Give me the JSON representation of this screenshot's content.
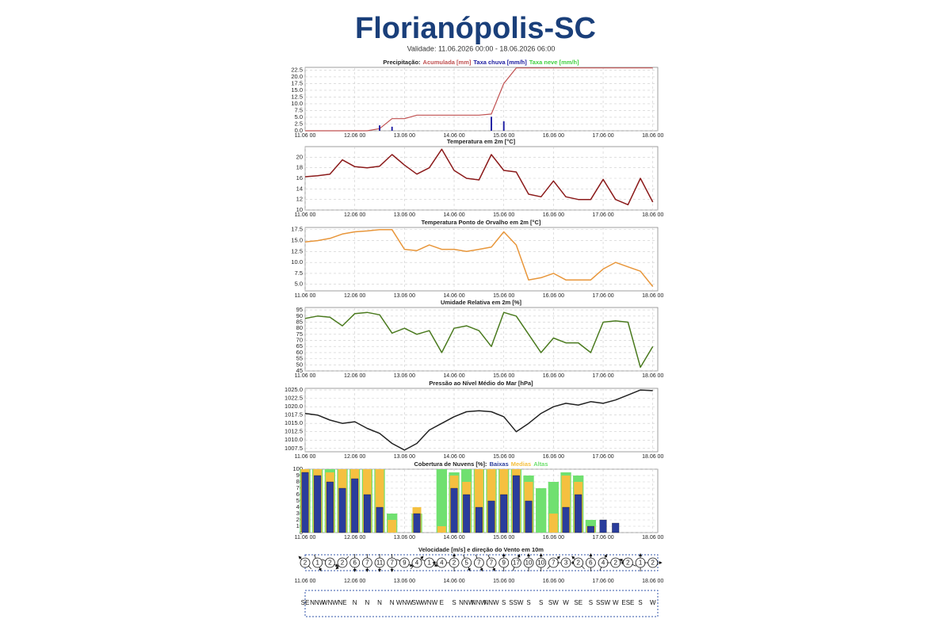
{
  "header": {
    "title": "Florianópolis-SC",
    "validity": "Validade: 11.06.2026 00:00 - 18.06.2026 06:00"
  },
  "chart_data": [
    {
      "type": "combo",
      "title": "Precipitação:",
      "categories": [
        "11.06 00",
        null,
        null,
        null,
        "12.06 00",
        null,
        null,
        null,
        "13.06 00",
        null,
        null,
        null,
        "14.06 00",
        null,
        null,
        null,
        "15.06 00",
        null,
        null,
        null,
        "16.06 00",
        null,
        null,
        null,
        "17.06 00",
        null,
        null,
        null,
        "18.06 00"
      ],
      "ylim": [
        0,
        23.5
      ],
      "yticks": [
        {
          "value": 0,
          "label": "0.0"
        },
        2.5,
        {
          "value": 5,
          "label": "5.0"
        },
        7.5,
        {
          "value": 10,
          "label": "10.0"
        },
        12.5,
        {
          "value": 15,
          "label": "15.0"
        },
        17.5,
        {
          "value": 20,
          "label": "20.0"
        },
        22.5
      ],
      "series": [
        {
          "name": "Acumulada [mm]",
          "kind": "line",
          "color": "#c05050",
          "values": [
            0,
            0,
            0,
            0,
            0,
            0,
            0.8,
            4.5,
            4.5,
            5.8,
            5.8,
            5.8,
            5.8,
            5.8,
            5.8,
            6.2,
            17.5,
            23.3,
            23.3,
            23.3,
            23.3,
            23.3,
            23.3,
            23.3,
            23.3,
            23.3,
            23.3,
            23.3,
            23.3
          ]
        },
        {
          "name": "Taxa chuva [mm/h]",
          "kind": "bar",
          "color": "#1a1aa0",
          "values": [
            0,
            0,
            0,
            0,
            0,
            0,
            2,
            1.5,
            0,
            0,
            0,
            0,
            0,
            0,
            0,
            5.2,
            3.5,
            0,
            0,
            0,
            0,
            0,
            0,
            0,
            0,
            0,
            0,
            0,
            0
          ]
        },
        {
          "name": "Taxa neve [mm/h]",
          "kind": "bar",
          "color": "#40d040",
          "values": [
            0,
            0,
            0,
            0,
            0,
            0,
            0,
            0,
            0,
            0,
            0,
            0,
            0,
            0,
            0,
            0,
            0,
            0,
            0,
            0,
            0,
            0,
            0,
            0,
            0,
            0,
            0,
            0,
            0
          ]
        }
      ]
    },
    {
      "type": "line",
      "title": "Temperatura em 2m [°C]",
      "categories": [
        "11.06 00",
        null,
        null,
        null,
        "12.06 00",
        null,
        null,
        null,
        "13.06 00",
        null,
        null,
        null,
        "14.06 00",
        null,
        null,
        null,
        "15.06 00",
        null,
        null,
        null,
        "16.06 00",
        null,
        null,
        null,
        "17.06 00",
        null,
        null,
        null,
        "18.06 00"
      ],
      "ylim": [
        10,
        22
      ],
      "yticks": [
        10,
        12,
        14,
        16,
        18,
        20
      ],
      "series": [
        {
          "name": "Temperatura",
          "color": "#8b1a1a",
          "values": [
            16.3,
            16.5,
            16.8,
            19.5,
            18.2,
            18,
            18.3,
            20.5,
            18.5,
            16.8,
            18,
            21.5,
            17.5,
            16,
            15.7,
            20.5,
            17.5,
            17.2,
            13,
            12.5,
            15.5,
            12.5,
            12,
            12,
            15.8,
            12,
            11,
            16,
            11.5
          ]
        }
      ]
    },
    {
      "type": "line",
      "title": "Temperatura Ponto de Orvalho em 2m [°C]",
      "categories": [
        "11.06 00",
        null,
        null,
        null,
        "12.06 00",
        null,
        null,
        null,
        "13.06 00",
        null,
        null,
        null,
        "14.06 00",
        null,
        null,
        null,
        "15.06 00",
        null,
        null,
        null,
        "16.06 00",
        null,
        null,
        null,
        "17.06 00",
        null,
        null,
        null,
        "18.06 00"
      ],
      "ylim": [
        3.5,
        18
      ],
      "yticks": [
        {
          "value": 5,
          "label": "5.0"
        },
        7.5,
        {
          "value": 10,
          "label": "10.0"
        },
        12.5,
        {
          "value": 15,
          "label": "15.0"
        },
        17.5
      ],
      "series": [
        {
          "name": "Ponto de Orvalho",
          "color": "#e8963a",
          "values": [
            14.7,
            15,
            15.5,
            16.5,
            17,
            17.2,
            17.5,
            17.5,
            13,
            12.7,
            14,
            13,
            13,
            12.5,
            13,
            13.5,
            17,
            14,
            6,
            6.5,
            7.5,
            6,
            6,
            6,
            8.5,
            10,
            9,
            8,
            4.5
          ]
        }
      ]
    },
    {
      "type": "line",
      "title": "Umidade Relativa em 2m [%]",
      "categories": [
        "11.06 00",
        null,
        null,
        null,
        "12.06 00",
        null,
        null,
        null,
        "13.06 00",
        null,
        null,
        null,
        "14.06 00",
        null,
        null,
        null,
        "15.06 00",
        null,
        null,
        null,
        "16.06 00",
        null,
        null,
        null,
        "17.06 00",
        null,
        null,
        null,
        "18.06 00"
      ],
      "ylim": [
        45,
        97
      ],
      "yticks": [
        45,
        50,
        55,
        60,
        65,
        70,
        75,
        80,
        85,
        90,
        95
      ],
      "series": [
        {
          "name": "Umidade",
          "color": "#4a7a1e",
          "values": [
            88,
            90,
            89,
            82,
            92,
            93,
            91,
            76,
            80,
            75,
            78,
            60,
            80,
            82,
            78,
            65,
            93,
            90,
            75,
            60,
            72,
            68,
            68,
            60,
            85,
            86,
            85,
            48,
            65
          ]
        }
      ]
    },
    {
      "type": "line",
      "title": "Pressão ao Nível Médio do Mar [hPa]",
      "categories": [
        "11.06 00",
        null,
        null,
        null,
        "12.06 00",
        null,
        null,
        null,
        "13.06 00",
        null,
        null,
        null,
        "14.06 00",
        null,
        null,
        null,
        "15.06 00",
        null,
        null,
        null,
        "16.06 00",
        null,
        null,
        null,
        "17.06 00",
        null,
        null,
        null,
        "18.06 00"
      ],
      "ylim": [
        1006.5,
        1025.5
      ],
      "yticks": [
        1007.5,
        {
          "value": 1010,
          "label": "1010.0"
        },
        1012.5,
        {
          "value": 1015,
          "label": "1015.0"
        },
        1017.5,
        {
          "value": 1020,
          "label": "1020.0"
        },
        1022.5,
        {
          "value": 1025,
          "label": "1025.0"
        }
      ],
      "series": [
        {
          "name": "Pressão",
          "color": "#222222",
          "values": [
            1018,
            1017.5,
            1016,
            1015,
            1015.5,
            1013.5,
            1012,
            1009,
            1007,
            1009,
            1013,
            1015,
            1017,
            1018.5,
            1018.8,
            1018.5,
            1017,
            1012.5,
            1015,
            1018,
            1020,
            1021,
            1020.5,
            1021.5,
            1021,
            1022,
            1023.5,
            1025,
            1024.8
          ]
        }
      ]
    },
    {
      "type": "bar",
      "title": "Cobertura de Nuvens [%]:",
      "categories": [
        "11.06 00",
        null,
        null,
        null,
        "12.06 00",
        null,
        null,
        null,
        "13.06 00",
        null,
        null,
        null,
        "14.06 00",
        null,
        null,
        null,
        "15.06 00",
        null,
        null,
        null,
        "16.06 00",
        null,
        null,
        null,
        "17.06 00",
        null,
        null,
        null,
        "18.06 00"
      ],
      "ylim": [
        0,
        100
      ],
      "yticks": [
        0,
        10,
        20,
        30,
        40,
        50,
        60,
        70,
        80,
        90,
        100
      ],
      "series": [
        {
          "name": "Altas",
          "color": "#70e070",
          "values": [
            100,
            100,
            100,
            100,
            100,
            100,
            100,
            30,
            0,
            30,
            0,
            100,
            95,
            100,
            100,
            100,
            100,
            100,
            90,
            70,
            80,
            95,
            90,
            20,
            0,
            0,
            0,
            0,
            0
          ]
        },
        {
          "name": "Medias",
          "color": "#f5c040",
          "values": [
            100,
            100,
            95,
            100,
            100,
            100,
            100,
            20,
            0,
            40,
            0,
            10,
            90,
            80,
            100,
            100,
            100,
            100,
            80,
            0,
            30,
            90,
            80,
            10,
            0,
            0,
            0,
            0,
            0
          ]
        },
        {
          "name": "Baixas",
          "color": "#2a3d9c",
          "values": [
            95,
            90,
            80,
            70,
            85,
            60,
            40,
            0,
            0,
            30,
            0,
            0,
            70,
            60,
            40,
            50,
            60,
            90,
            50,
            0,
            0,
            40,
            60,
            10,
            20,
            15,
            0,
            0,
            0
          ]
        }
      ]
    },
    {
      "type": "wind",
      "title": "Velocidade [m/s] e direção do Vento em 10m",
      "categories": [
        "11.06 00",
        null,
        null,
        null,
        "12.06 00",
        null,
        null,
        null,
        "13.06 00",
        null,
        null,
        null,
        "14.06 00",
        null,
        null,
        null,
        "15.06 00",
        null,
        null,
        null,
        "16.06 00",
        null,
        null,
        null,
        "17.06 00",
        null,
        null,
        null,
        "18.06 00"
      ],
      "speeds": [
        2,
        1,
        2,
        2,
        6,
        7,
        11,
        7,
        9,
        4,
        1,
        4,
        2,
        5,
        7,
        7,
        9,
        17,
        10,
        10,
        7,
        3,
        2,
        6,
        4,
        2,
        2,
        1,
        2
      ],
      "directions": [
        "SE",
        "NNW",
        "WNW",
        "NE",
        "N",
        "N",
        "N",
        "N",
        "WNW",
        "SW",
        "WNW",
        "E",
        "S",
        "NNW",
        "NNW",
        "NNW",
        "S",
        "SSW",
        "S",
        "S",
        "SW",
        "W",
        "SE",
        "S",
        "SSW",
        "W",
        "ESE",
        "S",
        "W"
      ]
    }
  ]
}
